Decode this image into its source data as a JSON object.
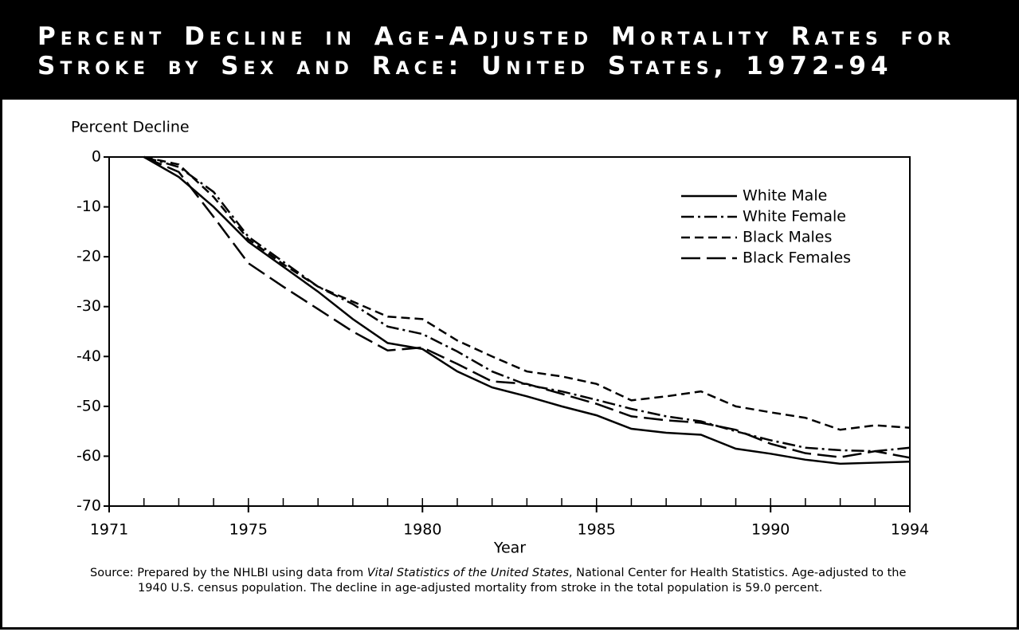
{
  "chart_data": {
    "type": "line",
    "title": "Percent Decline in Age-Adjusted Mortality Rates for Stroke by Sex and Race: United States, 1972-94",
    "y_label": "Percent Decline",
    "x_label": "Year",
    "x": [
      1972,
      1973,
      1974,
      1975,
      1976,
      1977,
      1978,
      1979,
      1980,
      1981,
      1982,
      1983,
      1984,
      1985,
      1986,
      1987,
      1988,
      1989,
      1990,
      1991,
      1992,
      1993,
      1994
    ],
    "series": [
      {
        "name": "White Male",
        "color": "#000000",
        "dash": "solid",
        "values": [
          0,
          -4,
          -10,
          -17,
          -22,
          -27,
          -32.5,
          -37.3,
          -38.5,
          -43,
          -46.2,
          -48,
          -50,
          -51.8,
          -54.5,
          -55.3,
          -55.7,
          -58.5,
          -59.5,
          -60.7,
          -61.5,
          -61.3,
          -61.1
        ]
      },
      {
        "name": "White Female",
        "color": "#000000",
        "dash": "dash-dot",
        "values": [
          0,
          -2,
          -7,
          -16,
          -21,
          -26,
          -29.5,
          -34,
          -35.5,
          -39,
          -43,
          -45.7,
          -47,
          -48.7,
          -50.5,
          -52,
          -53,
          -55,
          -56.8,
          -58.3,
          -58.8,
          -59,
          -58.3
        ]
      },
      {
        "name": "Black Males",
        "color": "#000000",
        "dash": "short-dash",
        "values": [
          0,
          -1.5,
          -8,
          -16.5,
          -21.5,
          -26,
          -29,
          -32,
          -32.5,
          -36.8,
          -40,
          -43,
          -44,
          -45.5,
          -48.8,
          -48,
          -47,
          -50,
          -51.2,
          -52.3,
          -54.7,
          -53.8,
          -54.3
        ]
      },
      {
        "name": "Black Females",
        "color": "#000000",
        "dash": "long-dash",
        "values": [
          0,
          -3,
          -12,
          -21.3,
          -26,
          -30.5,
          -35,
          -38.8,
          -38.2,
          -41.5,
          -45,
          -45.5,
          -47.5,
          -49.5,
          -52,
          -52.8,
          -53.3,
          -54.7,
          -57.5,
          -59.4,
          -60.2,
          -59,
          -60.3
        ]
      }
    ],
    "xlim": [
      1971,
      1994
    ],
    "xticks": [
      1971,
      1975,
      1980,
      1985,
      1990,
      1994
    ],
    "ylim": [
      -70,
      0
    ],
    "yticks": [
      0,
      -10,
      -20,
      -30,
      -40,
      -50,
      -60,
      -70
    ],
    "grid": false,
    "legend": "upper right",
    "source": [
      "Source: Prepared by the NHLBI using data from ",
      "Vital Statistics of the United States",
      ", National Center for Health Statistics. Age-adjusted to the 1940 U.S. census population.  The decline in age-adjusted mortality from stroke in the total population is 59.0 percent."
    ]
  }
}
